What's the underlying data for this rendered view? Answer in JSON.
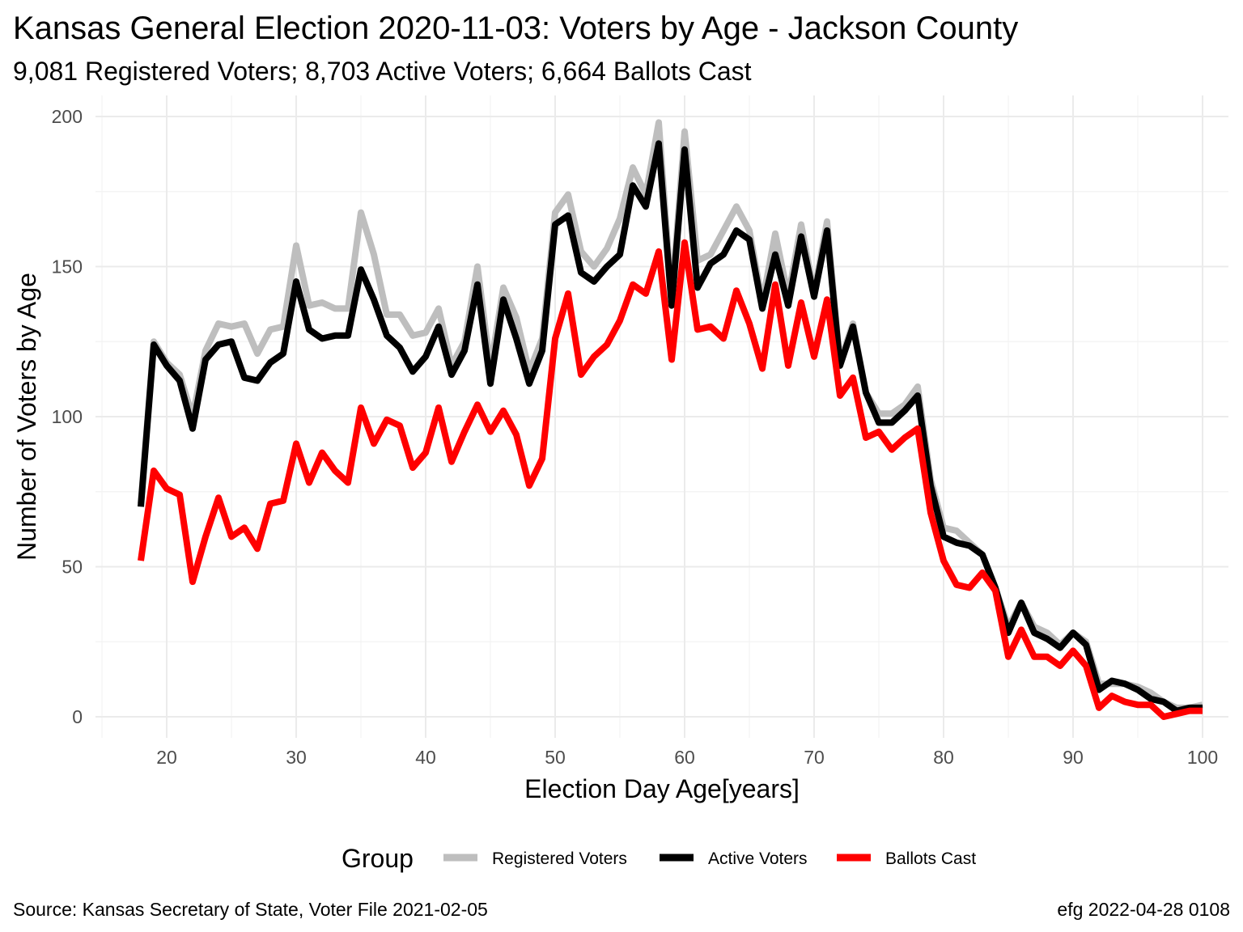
{
  "chart_data": {
    "type": "line",
    "title": "Kansas General Election 2020-11-03:  Voters by Age - Jackson County",
    "subtitle": "9,081 Registered Voters; 8,703 Active Voters; 6,664 Ballots Cast",
    "xlabel": "Election Day Age[years]",
    "ylabel": "Number of Voters by Age",
    "xlim": [
      14.5,
      102
    ],
    "ylim": [
      -7,
      207
    ],
    "x_ticks": [
      20,
      30,
      40,
      50,
      60,
      70,
      80,
      90,
      100
    ],
    "y_ticks": [
      0,
      50,
      100,
      150,
      200
    ],
    "grid": true,
    "legend": {
      "title": "Group",
      "position": "bottom",
      "entries": [
        "Registered Voters",
        "Active Voters",
        "Ballots Cast"
      ]
    },
    "caption_left": "Source:  Kansas Secretary of State, Voter File  2021-02-05",
    "caption_right": "efg 2022-04-28 0108",
    "x": [
      18,
      19,
      20,
      21,
      22,
      23,
      24,
      25,
      26,
      27,
      28,
      29,
      30,
      31,
      32,
      33,
      34,
      35,
      36,
      37,
      38,
      39,
      40,
      41,
      42,
      43,
      44,
      45,
      46,
      47,
      48,
      49,
      50,
      51,
      52,
      53,
      54,
      55,
      56,
      57,
      58,
      59,
      60,
      61,
      62,
      63,
      64,
      65,
      66,
      67,
      68,
      69,
      70,
      71,
      72,
      73,
      74,
      75,
      76,
      77,
      78,
      79,
      80,
      81,
      82,
      83,
      84,
      85,
      86,
      87,
      88,
      89,
      90,
      91,
      92,
      93,
      94,
      95,
      96,
      97,
      98,
      99,
      100
    ],
    "series": [
      {
        "name": "Registered Voters",
        "color": "#bebebe",
        "values": [
          71,
          125,
          118,
          114,
          100,
          122,
          131,
          130,
          131,
          121,
          129,
          130,
          157,
          137,
          138,
          136,
          136,
          168,
          154,
          134,
          134,
          127,
          128,
          136,
          117,
          125,
          150,
          116,
          143,
          133,
          115,
          126,
          168,
          174,
          155,
          150,
          156,
          166,
          183,
          174,
          198,
          139,
          195,
          152,
          154,
          162,
          170,
          162,
          138,
          161,
          140,
          164,
          141,
          165,
          118,
          131,
          108,
          101,
          101,
          104,
          110,
          79,
          63,
          62,
          58,
          54,
          43,
          30,
          38,
          30,
          28,
          24,
          28,
          25,
          11,
          11,
          11,
          10,
          8,
          5,
          3,
          3,
          4
        ]
      },
      {
        "name": "Active Voters",
        "color": "#000000",
        "values": [
          70,
          124,
          117,
          112,
          96,
          119,
          124,
          125,
          113,
          112,
          118,
          121,
          145,
          129,
          126,
          127,
          127,
          149,
          139,
          127,
          123,
          115,
          120,
          130,
          114,
          122,
          144,
          111,
          139,
          126,
          111,
          122,
          164,
          167,
          148,
          145,
          150,
          154,
          177,
          170,
          191,
          137,
          189,
          143,
          151,
          154,
          162,
          159,
          136,
          154,
          137,
          160,
          140,
          162,
          117,
          130,
          108,
          98,
          98,
          102,
          107,
          77,
          60,
          58,
          57,
          54,
          43,
          28,
          38,
          28,
          26,
          23,
          28,
          24,
          9,
          12,
          11,
          9,
          6,
          5,
          2,
          3,
          3
        ]
      },
      {
        "name": "Ballots Cast",
        "color": "#ff0000",
        "values": [
          52,
          82,
          76,
          74,
          45,
          60,
          73,
          60,
          63,
          56,
          71,
          72,
          91,
          78,
          88,
          82,
          78,
          103,
          91,
          99,
          97,
          83,
          88,
          103,
          85,
          95,
          104,
          95,
          102,
          94,
          77,
          86,
          126,
          141,
          114,
          120,
          124,
          132,
          144,
          141,
          155,
          119,
          158,
          129,
          130,
          126,
          142,
          131,
          116,
          144,
          117,
          138,
          120,
          139,
          107,
          113,
          93,
          95,
          89,
          93,
          96,
          68,
          52,
          44,
          43,
          48,
          42,
          20,
          29,
          20,
          20,
          17,
          22,
          17,
          3,
          7,
          5,
          4,
          4,
          0,
          1,
          2,
          2
        ]
      }
    ]
  }
}
